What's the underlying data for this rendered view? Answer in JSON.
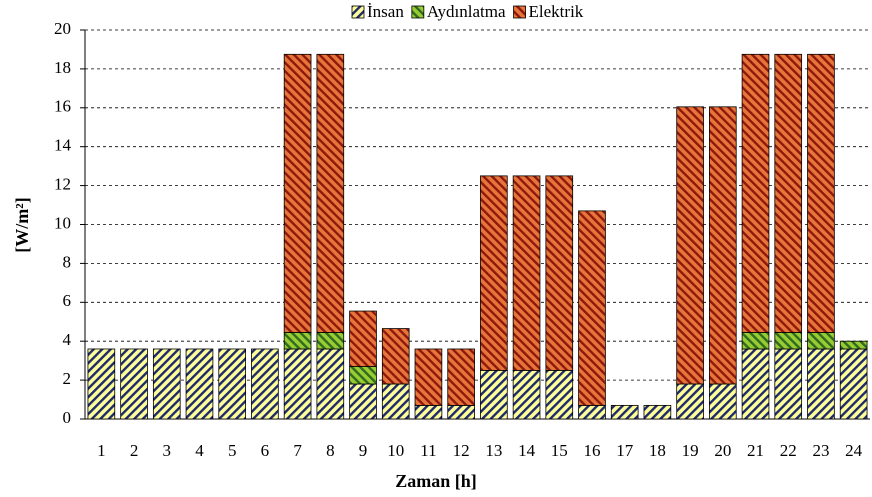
{
  "chart_data": {
    "type": "stacked-bar",
    "x_label": "Zaman [h]",
    "y_label": "[W/m²]",
    "categories": [
      "1",
      "2",
      "3",
      "4",
      "5",
      "6",
      "7",
      "8",
      "9",
      "10",
      "11",
      "12",
      "13",
      "14",
      "15",
      "16",
      "17",
      "18",
      "19",
      "20",
      "21",
      "22",
      "23",
      "24"
    ],
    "series": [
      {
        "name": "İnsan",
        "color": "#ffff99",
        "values": [
          3.6,
          3.6,
          3.6,
          3.6,
          3.6,
          3.6,
          3.6,
          3.6,
          1.8,
          1.8,
          0.7,
          0.7,
          2.5,
          2.5,
          2.5,
          0.7,
          0.7,
          0.7,
          1.8,
          1.8,
          3.6,
          3.6,
          3.6,
          3.6
        ]
      },
      {
        "name": "Aydınlatma",
        "color": "#99cc33",
        "values": [
          0,
          0,
          0,
          0,
          0,
          0,
          0.85,
          0.85,
          0.9,
          0,
          0,
          0,
          0,
          0,
          0,
          0,
          0,
          0,
          0,
          0,
          0.85,
          0.85,
          0.85,
          0.4
        ]
      },
      {
        "name": "Elektrik",
        "color": "#e8743b",
        "values": [
          0,
          0,
          0,
          0,
          0,
          0,
          14.3,
          14.3,
          2.85,
          2.85,
          2.9,
          2.9,
          10,
          10,
          10,
          10,
          0,
          0,
          14.25,
          14.25,
          14.3,
          14.3,
          14.3,
          0
        ]
      }
    ],
    "ylim": [
      0,
      20
    ],
    "yticks": [
      0,
      2,
      4,
      6,
      8,
      10,
      12,
      14,
      16,
      18,
      20
    ],
    "grid": true,
    "legend": "top"
  }
}
